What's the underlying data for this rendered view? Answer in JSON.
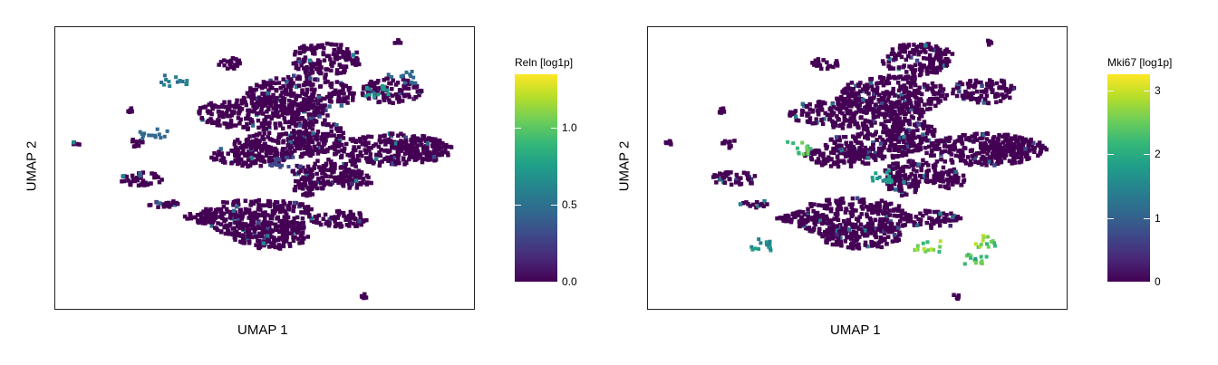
{
  "chart_data": [
    {
      "type": "scatter",
      "xlabel": "UMAP 1",
      "ylabel": "UMAP 2",
      "colorbar": {
        "title": "Reln [log1p]",
        "range": [
          0,
          1.35
        ],
        "ticks": [
          "0.0",
          "0.5",
          "1.0"
        ],
        "tick_values": [
          0,
          0.5,
          1.0
        ],
        "colormap": "viridis"
      },
      "grid": false,
      "legend_position": "right",
      "highlights": [
        {
          "x": 0.23,
          "y": 0.63,
          "value": 0.55
        },
        {
          "x": 0.28,
          "y": 0.82,
          "value": 0.6
        },
        {
          "x": 0.76,
          "y": 0.78,
          "value": 0.75
        },
        {
          "x": 0.82,
          "y": 0.83,
          "value": 0.5
        },
        {
          "x": 0.54,
          "y": 0.53,
          "value": 0.35
        }
      ]
    },
    {
      "type": "scatter",
      "xlabel": "UMAP 1",
      "ylabel": "UMAP 2",
      "colorbar": {
        "title": "Mki67 [log1p]",
        "range": [
          0,
          3.25
        ],
        "ticks": [
          "0",
          "1",
          "2",
          "3"
        ],
        "tick_values": [
          0,
          1,
          2,
          3
        ],
        "colormap": "viridis"
      },
      "grid": false,
      "legend_position": "right",
      "highlights": [
        {
          "x": 0.35,
          "y": 0.58,
          "value": 2.5
        },
        {
          "x": 0.55,
          "y": 0.48,
          "value": 2.0
        },
        {
          "x": 0.66,
          "y": 0.23,
          "value": 2.8
        },
        {
          "x": 0.78,
          "y": 0.19,
          "value": 2.6
        },
        {
          "x": 0.8,
          "y": 0.25,
          "value": 2.9
        },
        {
          "x": 0.27,
          "y": 0.24,
          "value": 1.9
        }
      ]
    }
  ]
}
